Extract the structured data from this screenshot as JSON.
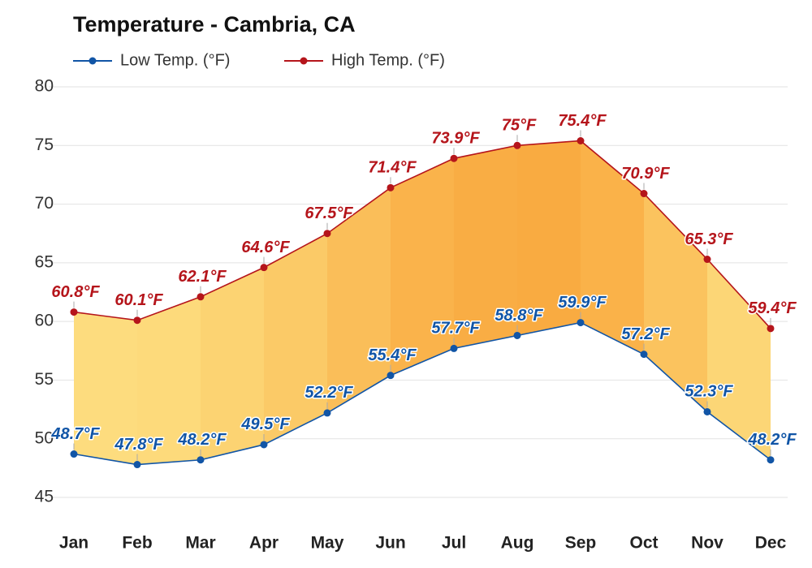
{
  "chart_data": {
    "type": "line",
    "title": "Temperature - Cambria, CA",
    "categories": [
      "Jan",
      "Feb",
      "Mar",
      "Apr",
      "May",
      "Jun",
      "Jul",
      "Aug",
      "Sep",
      "Oct",
      "Nov",
      "Dec"
    ],
    "series": [
      {
        "name": "Low Temp. (°F)",
        "color": "#1155a6",
        "values": [
          48.7,
          47.8,
          48.2,
          49.5,
          52.2,
          55.4,
          57.7,
          58.8,
          59.9,
          57.2,
          52.3,
          48.2
        ],
        "value_labels": [
          "48.7°F",
          "47.8°F",
          "48.2°F",
          "49.5°F",
          "52.2°F",
          "55.4°F",
          "57.7°F",
          "58.8°F",
          "59.9°F",
          "57.2°F",
          "52.3°F",
          "48.2°F"
        ]
      },
      {
        "name": "High Temp. (°F)",
        "color": "#b5151b",
        "values": [
          60.8,
          60.1,
          62.1,
          64.6,
          67.5,
          71.4,
          73.9,
          75,
          75.4,
          70.9,
          65.3,
          59.4
        ],
        "value_labels": [
          "60.8°F",
          "60.1°F",
          "62.1°F",
          "64.6°F",
          "67.5°F",
          "71.4°F",
          "73.9°F",
          "75°F",
          "75.4°F",
          "70.9°F",
          "65.3°F",
          "59.4°F"
        ]
      }
    ],
    "ylim": [
      45,
      80
    ],
    "yticks": [
      45,
      50,
      55,
      60,
      65,
      70,
      75,
      80
    ],
    "grid": true
  }
}
